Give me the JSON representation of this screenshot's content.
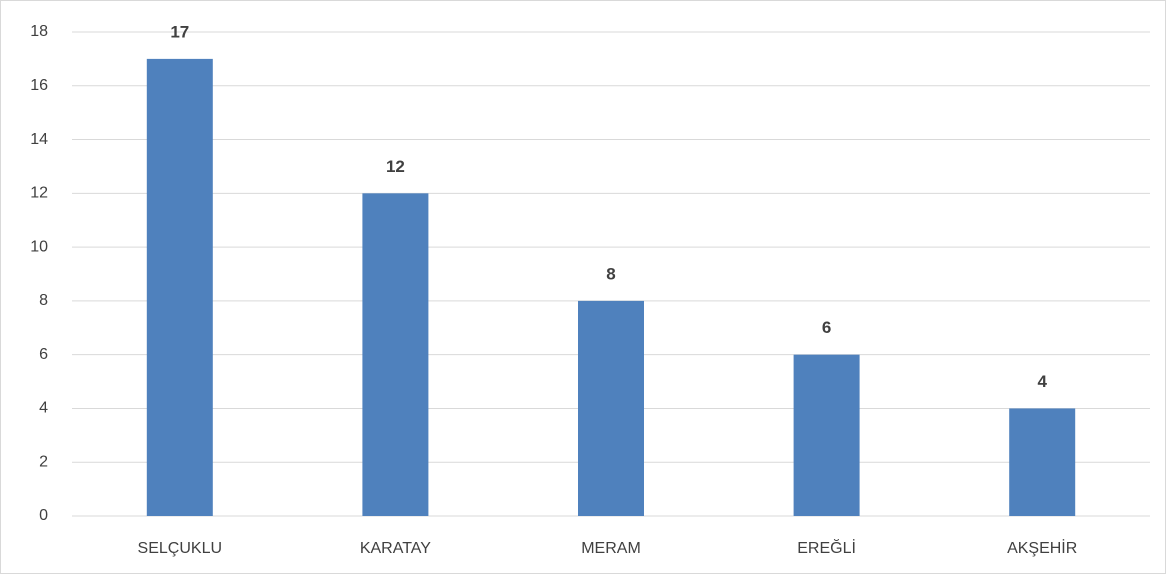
{
  "chart_data": {
    "type": "bar",
    "categories": [
      "SELÇUKLU",
      "KARATAY",
      "MERAM",
      "EREĞLİ",
      "AKŞEHİR"
    ],
    "values": [
      17,
      12,
      8,
      6,
      4
    ],
    "color": "#4f81bd",
    "ylim": [
      0,
      18
    ],
    "yticks": [
      0,
      2,
      4,
      6,
      8,
      10,
      12,
      14,
      16,
      18
    ],
    "grid": true,
    "data_labels": true
  }
}
